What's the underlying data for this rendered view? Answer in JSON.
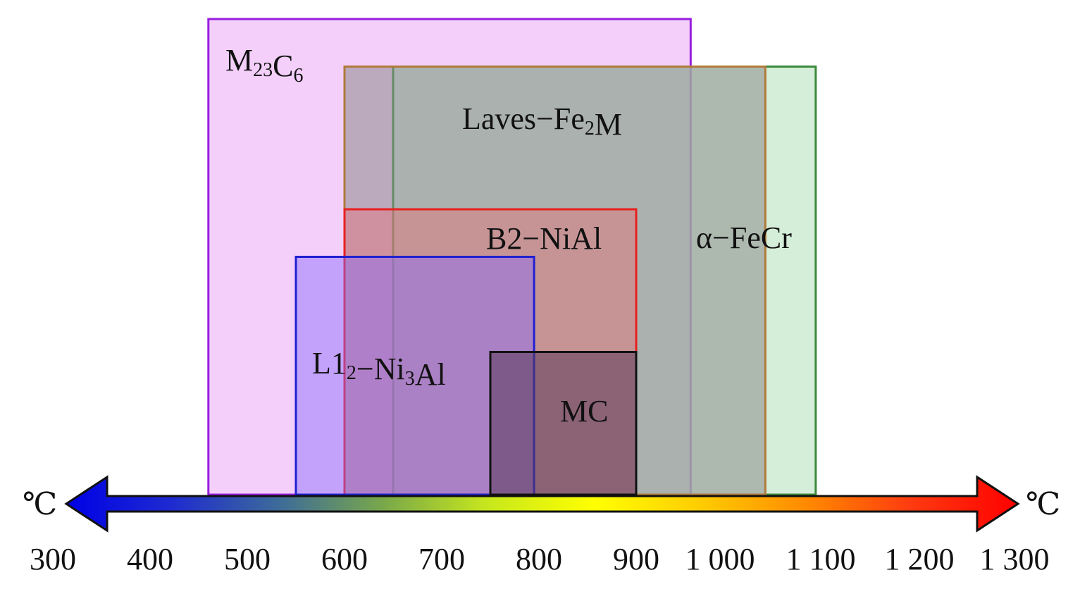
{
  "chart_data": {
    "type": "range-band",
    "x_unit": "℃",
    "xlim": [
      300,
      1300
    ],
    "ticks": [
      {
        "value": 300,
        "label": "300"
      },
      {
        "value": 400,
        "label": "400"
      },
      {
        "value": 500,
        "label": "500"
      },
      {
        "value": 600,
        "label": "600"
      },
      {
        "value": 700,
        "label": "700"
      },
      {
        "value": 800,
        "label": "800"
      },
      {
        "value": 900,
        "label": "900"
      },
      {
        "value": 1000,
        "label": "1 000"
      },
      {
        "value": 1100,
        "label": "1 100"
      },
      {
        "value": 1200,
        "label": "1 200"
      },
      {
        "value": 1300,
        "label": "1 300"
      }
    ],
    "axis_gradient": [
      "#0000e6",
      "#1f2bd0",
      "#3c6a9a",
      "#79a84a",
      "#c8e81c",
      "#ffff00",
      "#ffcc00",
      "#ff8a00",
      "#ff3a10",
      "#ff0000"
    ],
    "bands": [
      {
        "id": "m23c6",
        "name": "M23C6",
        "label_main": "M",
        "label_sub1": "23",
        "label_mid": "C",
        "label_sub2": "6",
        "label_tail": "",
        "x_start": 460,
        "x_end": 965,
        "level": 1.0,
        "fill": "#e9a8f5",
        "fill_opacity": 0.55,
        "stroke": "#9a1ee0"
      },
      {
        "id": "alpha-fecr",
        "name": "α−FeCr",
        "label_main": "α−FeCr",
        "label_sub1": "",
        "label_mid": "",
        "label_sub2": "",
        "label_tail": "",
        "x_start": 650,
        "x_end": 1095,
        "level": 0.9,
        "fill": "#bfe5c4",
        "fill_opacity": 0.65,
        "stroke": "#3a8a3a"
      },
      {
        "id": "laves",
        "name": "Laves−Fe2M",
        "label_main": "Laves−Fe",
        "label_sub1": "2",
        "label_mid": "M",
        "label_sub2": "",
        "label_tail": "",
        "x_start": 600,
        "x_end": 1045,
        "level": 0.9,
        "fill": "#8c8c8c",
        "fill_opacity": 0.55,
        "stroke": "#b07a3a"
      },
      {
        "id": "b2-nial",
        "name": "B2−NiAl",
        "label_main": "B2−NiAl",
        "label_sub1": "",
        "label_mid": "",
        "label_sub2": "",
        "label_tail": "",
        "x_start": 600,
        "x_end": 900,
        "level": 0.6,
        "fill": "#e8707a",
        "fill_opacity": 0.45,
        "stroke": "#e82020"
      },
      {
        "id": "l12-ni3al",
        "name": "L12−Ni3Al",
        "label_main": "L1",
        "label_sub1": "2",
        "label_mid": "−Ni",
        "label_sub2": "3",
        "label_tail": "Al",
        "x_start": 550,
        "x_end": 795,
        "level": 0.5,
        "fill": "#8a6aff",
        "fill_opacity": 0.45,
        "stroke": "#2020d0"
      },
      {
        "id": "mc",
        "name": "MC",
        "label_main": "MC",
        "label_sub1": "",
        "label_mid": "",
        "label_sub2": "",
        "label_tail": "",
        "x_start": 750,
        "x_end": 900,
        "level": 0.3,
        "fill": "#5a3a5a",
        "fill_opacity": 0.55,
        "stroke": "#111111"
      }
    ]
  }
}
